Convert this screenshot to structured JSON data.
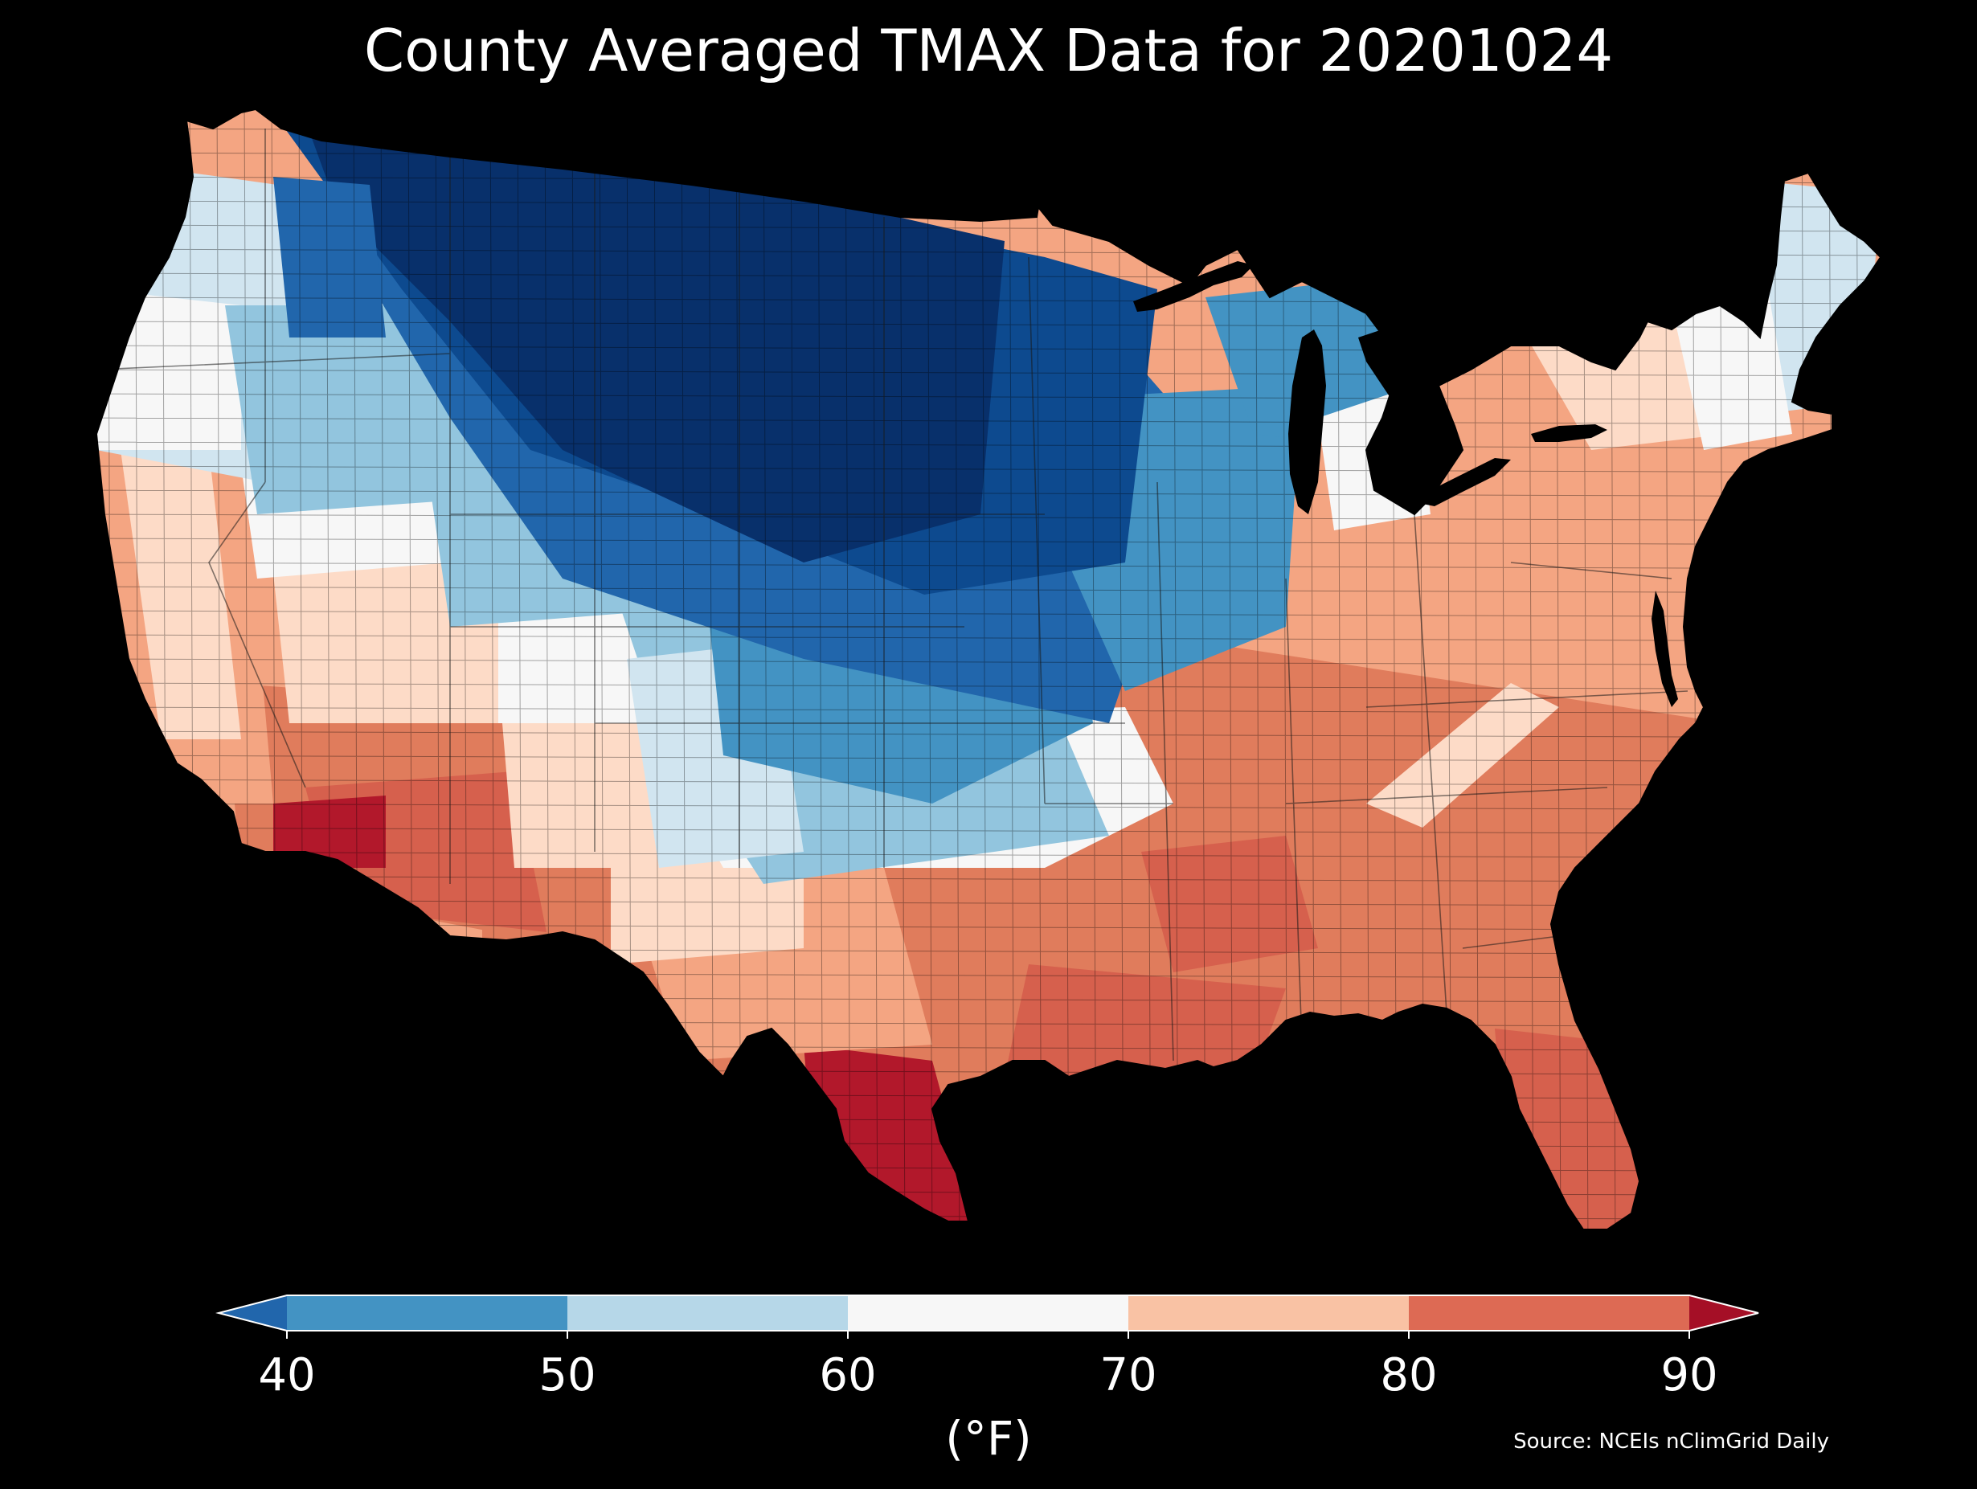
{
  "map": {
    "title": "County Averaged TMAX Data for 20201024",
    "source": "Source: NCEIs nClimGrid Daily",
    "background_color": "#000000",
    "border_color": "#000000",
    "state_line_color": "#1a1a1a",
    "region_color_scale": [
      {
        "level": 1,
        "color": "#08306b"
      },
      {
        "level": 2,
        "color": "#0d4a8f"
      },
      {
        "level": 3,
        "color": "#2166ac"
      },
      {
        "level": 4,
        "color": "#4393c3"
      },
      {
        "level": 5,
        "color": "#92c5de"
      },
      {
        "level": 6,
        "color": "#d1e5f0"
      },
      {
        "level": 7,
        "color": "#f7f7f7"
      },
      {
        "level": 8,
        "color": "#fddbc7"
      },
      {
        "level": 9,
        "color": "#f4a582"
      },
      {
        "level": 10,
        "color": "#e07c5c"
      },
      {
        "level": 11,
        "color": "#d6604d"
      },
      {
        "level": 12,
        "color": "#b2182b"
      }
    ]
  },
  "colorbar": {
    "unit_label": "(°F)",
    "ticks": [
      "40",
      "50",
      "60",
      "70",
      "80",
      "90"
    ],
    "bins": [
      {
        "from": 40,
        "to": 50,
        "color": "#4393c3"
      },
      {
        "from": 50,
        "to": 60,
        "color": "#b6d7e8"
      },
      {
        "from": 60,
        "to": 70,
        "color": "#f7f7f7"
      },
      {
        "from": 70,
        "to": 80,
        "color": "#f9c2a4"
      },
      {
        "from": 80,
        "to": 90,
        "color": "#dd6a54"
      }
    ],
    "under_color": "#2166ac",
    "over_color": "#a50f26",
    "outline_color": "#ffffff"
  }
}
